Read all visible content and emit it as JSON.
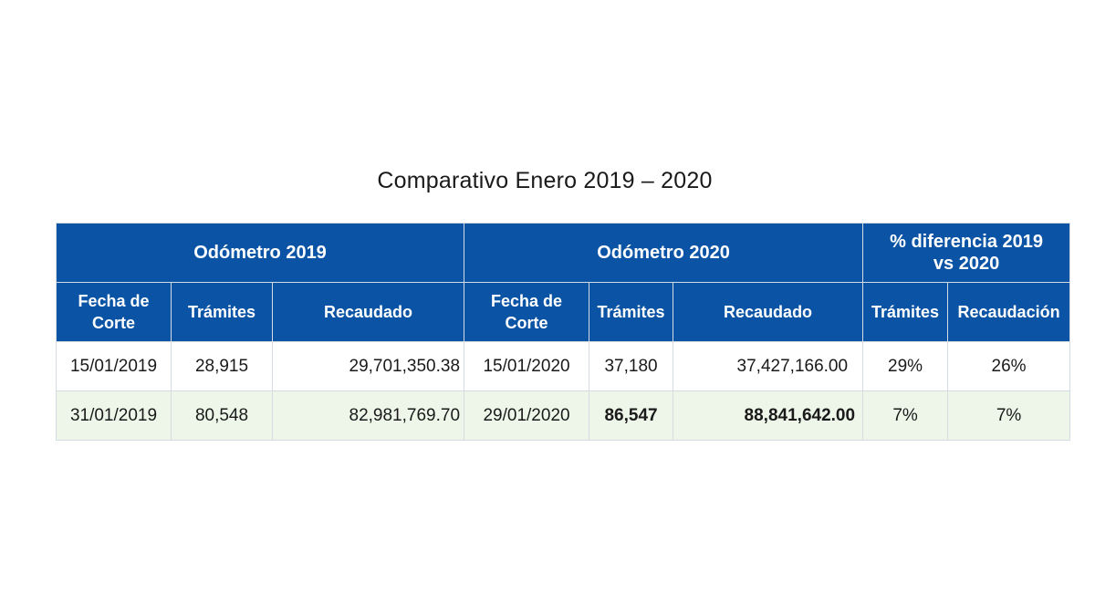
{
  "title": "Comparativo Enero 2019 – 2020",
  "groups": {
    "odometro_2019": "Odómetro 2019",
    "odometro_2020": "Odómetro 2020",
    "diferencia": "% diferencia 2019 vs 2020"
  },
  "columns": {
    "fecha_2019": "Fecha de Corte",
    "tramites_2019": "Trámites",
    "recaudado_2019": "Recaudado",
    "fecha_2020": "Fecha de Corte",
    "tramites_2020": "Trámites",
    "recaudado_2020": "Recaudado",
    "dif_tramites": "Trámites",
    "dif_recaudacion": "Recaudación"
  },
  "rows": [
    {
      "fecha_2019": "15/01/2019",
      "tramites_2019": "28,915",
      "recaudado_2019": "29,701,350.38",
      "fecha_2020": "15/01/2020",
      "tramites_2020": "37,180",
      "recaudado_2020": "37,427,166.00",
      "dif_tramites": "29%",
      "dif_recaudacion": "26%"
    },
    {
      "fecha_2019": "31/01/2019",
      "tramites_2019": "80,548",
      "recaudado_2019": "82,981,769.70",
      "fecha_2020": "29/01/2020",
      "tramites_2020": "86,547",
      "recaudado_2020": "88,841,642.00",
      "dif_tramites": "7%",
      "dif_recaudacion": "7%"
    }
  ],
  "colors": {
    "header_blue": "#0b54a5",
    "row_green": "#edf6e9"
  }
}
